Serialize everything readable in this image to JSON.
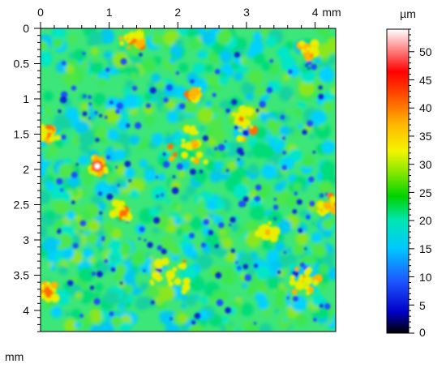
{
  "map": {
    "x_axis": {
      "ticks": [
        "0",
        "1",
        "2",
        "3",
        "4"
      ],
      "unit": "mm",
      "range": [
        0,
        4.3
      ]
    },
    "y_axis": {
      "ticks": [
        "0",
        "0.5",
        "1",
        "1.5",
        "2",
        "2.5",
        "3",
        "3.5",
        "4"
      ],
      "unit": "mm",
      "range": [
        0,
        4.3
      ]
    },
    "colorbar": {
      "unit": "µm",
      "ticks": [
        "0",
        "5",
        "10",
        "15",
        "20",
        "25",
        "30",
        "35",
        "40",
        "45",
        "50"
      ],
      "range": [
        0,
        54
      ],
      "colors": [
        "#000000",
        "#0000c8",
        "#1e55ff",
        "#00c8ff",
        "#00e6b4",
        "#00d200",
        "#78e600",
        "#f5f500",
        "#ffb400",
        "#ff5000",
        "#ff0000",
        "#ffffff"
      ]
    }
  }
}
